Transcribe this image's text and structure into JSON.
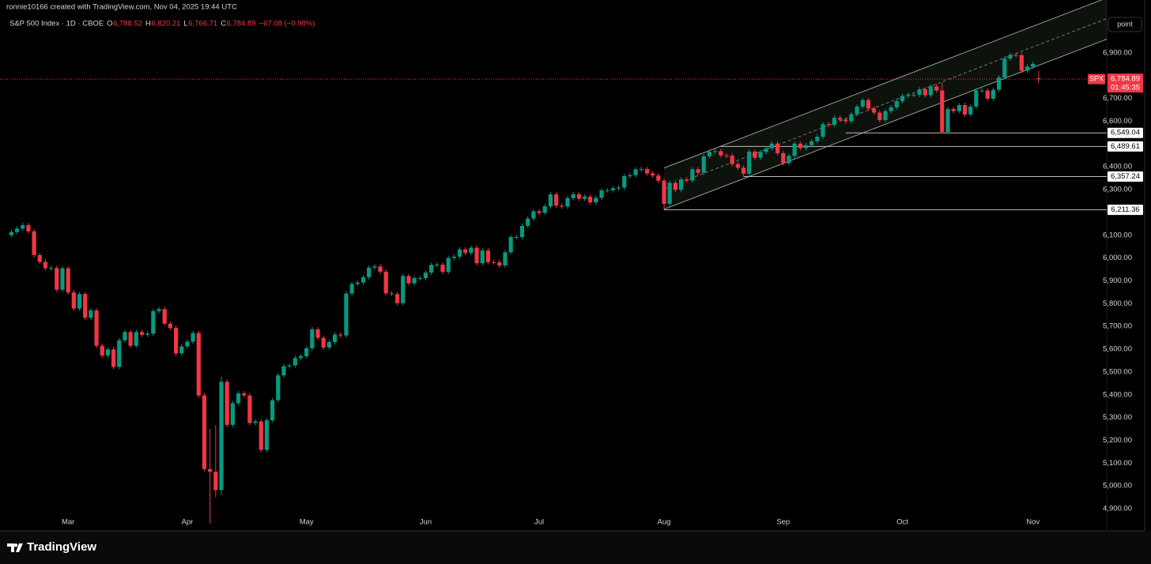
{
  "header": {
    "credit": "ronnie10166 created with TradingView.com, Nov 04, 2025 19:44 UTC"
  },
  "legend": {
    "symbol": "S&P 500 Index · 1D · CBOE",
    "o_label": "O",
    "o": "6,788.52",
    "h_label": "H",
    "h": "6,820.21",
    "l_label": "L",
    "l": "6,766.71",
    "c_label": "C",
    "c": "6,784.89",
    "change": "−67.08 (−0.98%)"
  },
  "toolbar": {
    "button": "point"
  },
  "footer": {
    "brand": "TradingView"
  },
  "chart_data": {
    "type": "candlestick",
    "up_color": "#089981",
    "down_color": "#f23645",
    "xlim": [
      -2,
      193
    ],
    "ylim": [
      4803,
      7132
    ],
    "xticks": [
      {
        "value": 10,
        "label": "Mar"
      },
      {
        "value": 31,
        "label": "Apr"
      },
      {
        "value": 52,
        "label": "May"
      },
      {
        "value": 73,
        "label": "Jun"
      },
      {
        "value": 93,
        "label": "Jul"
      },
      {
        "value": 115,
        "label": "Aug"
      },
      {
        "value": 136,
        "label": "Sep"
      },
      {
        "value": 157,
        "label": "Oct"
      },
      {
        "value": 180,
        "label": "Nov"
      }
    ],
    "yticks": [
      {
        "value": 6900,
        "label": "6,900.00"
      },
      {
        "value": 6700,
        "label": "6,700.00"
      },
      {
        "value": 6600,
        "label": "6,600.00"
      },
      {
        "value": 6400,
        "label": "6,400.00"
      },
      {
        "value": 6300,
        "label": "6,300.00"
      },
      {
        "value": 6100,
        "label": "6,100.00"
      },
      {
        "value": 6000,
        "label": "6,000.00"
      },
      {
        "value": 5900,
        "label": "5,900.00"
      },
      {
        "value": 5800,
        "label": "5,800.00"
      },
      {
        "value": 5700,
        "label": "5,700.00"
      },
      {
        "value": 5600,
        "label": "5,600.00"
      },
      {
        "value": 5500,
        "label": "5,500.00"
      },
      {
        "value": 5400,
        "label": "5,400.00"
      },
      {
        "value": 5300,
        "label": "5,300.00"
      },
      {
        "value": 5200,
        "label": "5,200.00"
      },
      {
        "value": 5100,
        "label": "5,100.00"
      },
      {
        "value": 5000,
        "label": "5,000.00"
      },
      {
        "value": 4900,
        "label": "4,900.00"
      }
    ],
    "open": [
      6100,
      6114,
      6129,
      6144,
      6117,
      6013,
      5983,
      5955,
      5956,
      5861,
      5955,
      5849,
      5778,
      5842,
      5738,
      5770,
      5615,
      5572,
      5599,
      5522,
      5639,
      5675,
      5615,
      5675,
      5663,
      5668,
      5767,
      5776,
      5712,
      5693,
      5581,
      5612,
      5633,
      5671,
      5397,
      5074,
      5062,
      4982,
      5457,
      5268,
      5363,
      5406,
      5397,
      5276,
      5283,
      5158,
      5288,
      5376,
      5485,
      5525,
      5529,
      5561,
      5569,
      5604,
      5687,
      5650,
      5607,
      5631,
      5664,
      5660,
      5844,
      5886,
      5892,
      5916,
      5958,
      5963,
      5940,
      5845,
      5842,
      5802,
      5921,
      5889,
      5912,
      5912,
      5936,
      5970,
      5971,
      5939,
      6000,
      6006,
      6038,
      6022,
      6045,
      5977,
      6033,
      5982,
      5981,
      5967,
      6025,
      6092,
      6092,
      6141,
      6173,
      6205,
      6198,
      6227,
      6279,
      6230,
      6226,
      6263,
      6280,
      6260,
      6269,
      6244,
      6264,
      6297,
      6297,
      6306,
      6309,
      6359,
      6363,
      6389,
      6390,
      6371,
      6362,
      6339,
      6238,
      6330,
      6299,
      6345,
      6340,
      6389,
      6374,
      6446,
      6466,
      6469,
      6450,
      6449,
      6412,
      6396,
      6370,
      6467,
      6440,
      6465,
      6481,
      6502,
      6460,
      6416,
      6448,
      6502,
      6482,
      6495,
      6512,
      6532,
      6587,
      6584,
      6615,
      6607,
      6600,
      6631,
      6664,
      6693,
      6656,
      6638,
      6605,
      6644,
      6661,
      6688,
      6711,
      6715,
      6716,
      6740,
      6714,
      6753,
      6735,
      6553,
      6654,
      6644,
      6671,
      6630,
      6664,
      6735,
      6735,
      6699,
      6738,
      6792,
      6875,
      6891,
      6890,
      6822,
      6840,
      6788.52
    ],
    "high": [
      6124,
      6139,
      6154,
      6154,
      6127,
      6023,
      5993,
      5966,
      5966,
      5965,
      5965,
      5859,
      5852,
      5852,
      5780,
      5780,
      5625,
      5609,
      5609,
      5649,
      5685,
      5685,
      5685,
      5685,
      5678,
      5777,
      5786,
      5786,
      5722,
      5703,
      5622,
      5643,
      5681,
      5681,
      5407,
      5250,
      5267,
      5480,
      5467,
      5373,
      5416,
      5416,
      5407,
      5293,
      5293,
      5298,
      5386,
      5495,
      5535,
      5539,
      5571,
      5579,
      5614,
      5697,
      5697,
      5660,
      5641,
      5674,
      5674,
      5854,
      5896,
      5902,
      5926,
      5968,
      5973,
      5973,
      5950,
      5855,
      5852,
      5931,
      5931,
      5922,
      5922,
      5946,
      5980,
      5981,
      5981,
      6010,
      6016,
      6048,
      6048,
      6055,
      6055,
      6043,
      6043,
      5992,
      5991,
      6035,
      6102,
      6102,
      6151,
      6183,
      6215,
      6215,
      6237,
      6289,
      6289,
      6240,
      6273,
      6290,
      6290,
      6279,
      6279,
      6274,
      6307,
      6307,
      6316,
      6319,
      6369,
      6373,
      6399,
      6400,
      6400,
      6381,
      6372,
      6349,
      6340,
      6340,
      6355,
      6355,
      6399,
      6399,
      6456,
      6476,
      6479,
      6479,
      6460,
      6459,
      6422,
      6406,
      6477,
      6477,
      6475,
      6491,
      6512,
      6512,
      6470,
      6458,
      6512,
      6512,
      6505,
      6522,
      6542,
      6597,
      6597,
      6625,
      6625,
      6617,
      6641,
      6674,
      6703,
      6703,
      6666,
      6648,
      6654,
      6671,
      6698,
      6721,
      6725,
      6726,
      6750,
      6750,
      6763,
      6763,
      6770,
      6664,
      6664,
      6681,
      6681,
      6674,
      6745,
      6745,
      6745,
      6748,
      6802,
      6885,
      6901,
      6901,
      6900,
      6850,
      6862,
      6820.21
    ],
    "low": [
      6090,
      6104,
      6119,
      6107,
      6003,
      5973,
      5945,
      5945,
      5851,
      5851,
      5839,
      5768,
      5768,
      5728,
      5728,
      5605,
      5562,
      5562,
      5512,
      5512,
      5629,
      5605,
      5605,
      5653,
      5653,
      5658,
      5757,
      5702,
      5683,
      5571,
      5571,
      5602,
      5623,
      5387,
      5064,
      4835,
      4950,
      4960,
      5258,
      5258,
      5353,
      5387,
      5266,
      5266,
      5148,
      5148,
      5278,
      5366,
      5475,
      5515,
      5519,
      5551,
      5559,
      5594,
      5640,
      5597,
      5597,
      5621,
      5650,
      5650,
      5834,
      5876,
      5882,
      5906,
      5948,
      5930,
      5835,
      5832,
      5792,
      5792,
      5879,
      5879,
      5902,
      5902,
      5926,
      5960,
      5929,
      5929,
      5990,
      5996,
      6012,
      6012,
      5967,
      5967,
      5972,
      5971,
      5957,
      5957,
      6015,
      6082,
      6082,
      6131,
      6163,
      6188,
      6188,
      6217,
      6220,
      6216,
      6216,
      6253,
      6250,
      6250,
      6234,
      6234,
      6254,
      6287,
      6287,
      6296,
      6299,
      6349,
      6353,
      6379,
      6361,
      6352,
      6329,
      6212,
      6228,
      6289,
      6289,
      6330,
      6330,
      6364,
      6364,
      6436,
      6456,
      6440,
      6439,
      6402,
      6386,
      6358,
      6360,
      6430,
      6430,
      6455,
      6471,
      6450,
      6406,
      6406,
      6438,
      6472,
      6472,
      6485,
      6502,
      6522,
      6574,
      6574,
      6597,
      6590,
      6590,
      6621,
      6654,
      6646,
      6628,
      6595,
      6595,
      6634,
      6651,
      6678,
      6701,
      6705,
      6706,
      6704,
      6704,
      6725,
      6550,
      6543,
      6634,
      6634,
      6620,
      6620,
      6654,
      6725,
      6689,
      6689,
      6728,
      6782,
      6865,
      6880,
      6812,
      6812,
      6830,
      6766.71
    ],
    "close": [
      6114,
      6129,
      6144,
      6117,
      6013,
      5983,
      5955,
      5956,
      5861,
      5955,
      5849,
      5778,
      5842,
      5738,
      5770,
      5615,
      5572,
      5599,
      5522,
      5639,
      5675,
      5615,
      5675,
      5663,
      5668,
      5767,
      5776,
      5712,
      5693,
      5581,
      5612,
      5633,
      5671,
      5397,
      5074,
      5062,
      4982,
      5457,
      5268,
      5363,
      5406,
      5397,
      5276,
      5283,
      5158,
      5288,
      5376,
      5485,
      5525,
      5529,
      5561,
      5569,
      5604,
      5687,
      5650,
      5607,
      5631,
      5664,
      5660,
      5844,
      5886,
      5892,
      5916,
      5958,
      5963,
      5940,
      5845,
      5842,
      5802,
      5921,
      5889,
      5912,
      5912,
      5936,
      5970,
      5971,
      5939,
      6000,
      6006,
      6038,
      6022,
      6045,
      5977,
      6033,
      5982,
      5981,
      5967,
      6025,
      6092,
      6092,
      6141,
      6173,
      6205,
      6198,
      6227,
      6279,
      6230,
      6226,
      6263,
      6280,
      6260,
      6269,
      6244,
      6264,
      6297,
      6297,
      6306,
      6309,
      6359,
      6363,
      6389,
      6390,
      6371,
      6362,
      6339,
      6238,
      6330,
      6299,
      6345,
      6340,
      6389,
      6374,
      6446,
      6466,
      6469,
      6450,
      6449,
      6412,
      6396,
      6370,
      6467,
      6440,
      6465,
      6481,
      6502,
      6460,
      6416,
      6448,
      6502,
      6482,
      6495,
      6512,
      6532,
      6587,
      6584,
      6615,
      6607,
      6600,
      6631,
      6664,
      6693,
      6656,
      6638,
      6605,
      6644,
      6661,
      6688,
      6711,
      6715,
      6716,
      6740,
      6714,
      6753,
      6735,
      6553,
      6654,
      6644,
      6671,
      6630,
      6664,
      6735,
      6735,
      6699,
      6738,
      6792,
      6875,
      6891,
      6890,
      6822,
      6840,
      6851.97,
      6784.89
    ],
    "channel": {
      "lower": [
        [
          115,
          6214
        ],
        [
          193,
          6960
        ]
      ],
      "upper": [
        [
          115,
          6395
        ],
        [
          193,
          7141
        ]
      ]
    },
    "hlines": [
      {
        "from": 147,
        "value": 6549.04,
        "label": "6,549.04"
      },
      {
        "from": 125,
        "value": 6489.61,
        "label": "6,489.61"
      },
      {
        "from": 129,
        "value": 6357.24,
        "label": "6,357.24"
      },
      {
        "from": 115,
        "value": 6211.36,
        "label": "6,211.36"
      }
    ],
    "last_price": {
      "value": 6784.89,
      "label": "6,784.89",
      "symbol": "SPX",
      "countdown": "01:45:35"
    }
  }
}
